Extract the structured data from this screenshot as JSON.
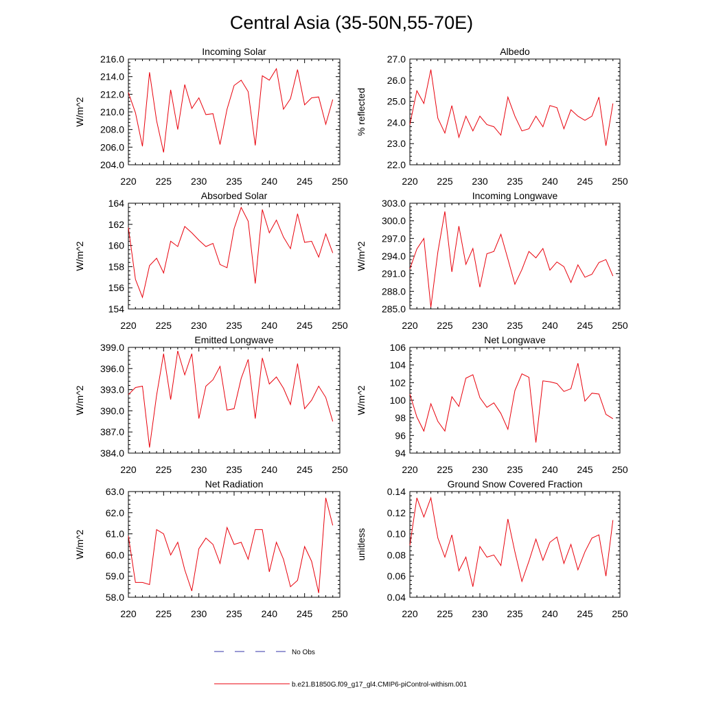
{
  "title": "Central Asia (35-50N,55-70E)",
  "legend": [
    {
      "label": "No Obs",
      "color": "#3333aa",
      "dash": true
    },
    {
      "label": "b.e21.B1850G.f09_g17_gl4.CMIP6-piControl-withism.001",
      "color": "#e8000b",
      "dash": false
    }
  ],
  "chart_data": [
    {
      "type": "line",
      "title": "Incoming Solar",
      "ylabel": "W/m^2",
      "xlim": [
        220,
        250
      ],
      "ylim": [
        204,
        216
      ],
      "xticks": [
        "220",
        "225",
        "230",
        "235",
        "240",
        "245",
        "250"
      ],
      "yticks": [
        "204.0",
        "206.0",
        "208.0",
        "210.0",
        "212.0",
        "214.0",
        "216.0"
      ],
      "series": [
        {
          "color": "#e8000b",
          "x": [
            220,
            221,
            222,
            223,
            224,
            225,
            226,
            227,
            228,
            229,
            230,
            231,
            232,
            233,
            234,
            235,
            236,
            237,
            238,
            239,
            240,
            241,
            242,
            243,
            244,
            245,
            246,
            247,
            248,
            249
          ],
          "y": [
            212.2,
            209.9,
            206.1,
            214.5,
            209.0,
            205.4,
            212.5,
            208.0,
            213.1,
            210.4,
            211.6,
            209.7,
            209.8,
            206.3,
            210.3,
            213.0,
            213.6,
            212.3,
            206.2,
            214.1,
            213.6,
            214.9,
            210.3,
            211.5,
            214.8,
            210.8,
            211.6,
            211.7,
            208.6,
            211.4
          ]
        }
      ]
    },
    {
      "type": "line",
      "title": "Albedo",
      "ylabel": "% reflected",
      "xlim": [
        220,
        250
      ],
      "ylim": [
        22,
        27
      ],
      "xticks": [
        "220",
        "225",
        "230",
        "235",
        "240",
        "245",
        "250"
      ],
      "yticks": [
        "22.0",
        "23.0",
        "24.0",
        "25.0",
        "26.0",
        "27.0"
      ],
      "series": [
        {
          "color": "#e8000b",
          "x": [
            220,
            221,
            222,
            223,
            224,
            225,
            226,
            227,
            228,
            229,
            230,
            231,
            232,
            233,
            234,
            235,
            236,
            237,
            238,
            239,
            240,
            241,
            242,
            243,
            244,
            245,
            246,
            247,
            248,
            249
          ],
          "y": [
            23.9,
            25.5,
            24.9,
            26.5,
            24.2,
            23.5,
            24.8,
            23.3,
            24.3,
            23.6,
            24.3,
            23.9,
            23.8,
            23.4,
            25.2,
            24.3,
            23.6,
            23.7,
            24.3,
            23.8,
            24.8,
            24.7,
            23.7,
            24.6,
            24.3,
            24.1,
            24.3,
            25.2,
            22.9,
            24.9
          ]
        }
      ]
    },
    {
      "type": "line",
      "title": "Absorbed Solar",
      "ylabel": "W/m^2",
      "xlim": [
        220,
        250
      ],
      "ylim": [
        154,
        164
      ],
      "xticks": [
        "220",
        "225",
        "230",
        "235",
        "240",
        "245",
        "250"
      ],
      "yticks": [
        "154",
        "156",
        "158",
        "160",
        "162",
        "164"
      ],
      "series": [
        {
          "color": "#e8000b",
          "x": [
            220,
            221,
            222,
            223,
            224,
            225,
            226,
            227,
            228,
            229,
            230,
            231,
            232,
            233,
            234,
            235,
            236,
            237,
            238,
            239,
            240,
            241,
            242,
            243,
            244,
            245,
            246,
            247,
            248,
            249
          ],
          "y": [
            161.7,
            156.8,
            155.1,
            158.1,
            158.8,
            157.4,
            160.4,
            159.9,
            161.8,
            161.2,
            160.5,
            159.9,
            160.2,
            158.2,
            157.9,
            161.6,
            163.6,
            162.3,
            156.4,
            163.4,
            161.2,
            162.4,
            160.8,
            159.7,
            163.0,
            160.3,
            160.4,
            158.9,
            161.1,
            159.3
          ]
        }
      ]
    },
    {
      "type": "line",
      "title": "Incoming Longwave",
      "ylabel": "W/m^2",
      "xlim": [
        220,
        250
      ],
      "ylim": [
        285,
        303
      ],
      "xticks": [
        "220",
        "225",
        "230",
        "235",
        "240",
        "245",
        "250"
      ],
      "yticks": [
        "285.0",
        "288.0",
        "291.0",
        "294.0",
        "297.0",
        "300.0",
        "303.0"
      ],
      "series": [
        {
          "color": "#e8000b",
          "x": [
            220,
            221,
            222,
            223,
            224,
            225,
            226,
            227,
            228,
            229,
            230,
            231,
            232,
            233,
            234,
            235,
            236,
            237,
            238,
            239,
            240,
            241,
            242,
            243,
            244,
            245,
            246,
            247,
            248,
            249
          ],
          "y": [
            291.8,
            295.2,
            297.0,
            285.3,
            294.7,
            301.6,
            291.3,
            299.1,
            292.6,
            295.3,
            288.7,
            294.4,
            294.8,
            297.7,
            293.5,
            289.2,
            291.7,
            294.8,
            293.7,
            295.3,
            291.6,
            293.0,
            292.2,
            289.5,
            292.5,
            290.4,
            290.9,
            292.9,
            293.4,
            290.6
          ]
        }
      ]
    },
    {
      "type": "line",
      "title": "Emitted Longwave",
      "ylabel": "W/m^2",
      "xlim": [
        220,
        250
      ],
      "ylim": [
        384,
        399
      ],
      "xticks": [
        "220",
        "225",
        "230",
        "235",
        "240",
        "245",
        "250"
      ],
      "yticks": [
        "384.0",
        "387.0",
        "390.0",
        "393.0",
        "396.0",
        "399.0"
      ],
      "series": [
        {
          "color": "#e8000b",
          "x": [
            220,
            221,
            222,
            223,
            224,
            225,
            226,
            227,
            228,
            229,
            230,
            231,
            232,
            233,
            234,
            235,
            236,
            237,
            238,
            239,
            240,
            241,
            242,
            243,
            244,
            245,
            246,
            247,
            248,
            249
          ],
          "y": [
            392.3,
            393.3,
            393.5,
            384.8,
            392.2,
            398.1,
            391.6,
            398.5,
            395.1,
            398.1,
            388.9,
            393.5,
            394.4,
            396.3,
            390.1,
            390.3,
            394.6,
            397.3,
            388.9,
            397.5,
            393.8,
            394.8,
            393.2,
            390.9,
            396.7,
            390.3,
            391.5,
            393.5,
            391.9,
            388.5
          ]
        }
      ]
    },
    {
      "type": "line",
      "title": "Net Longwave",
      "ylabel": "W/m^2",
      "xlim": [
        220,
        250
      ],
      "ylim": [
        94,
        106
      ],
      "xticks": [
        "220",
        "225",
        "230",
        "235",
        "240",
        "245",
        "250"
      ],
      "yticks": [
        "94",
        "96",
        "98",
        "100",
        "102",
        "104",
        "106"
      ],
      "series": [
        {
          "color": "#e8000b",
          "x": [
            220,
            221,
            222,
            223,
            224,
            225,
            226,
            227,
            228,
            229,
            230,
            231,
            232,
            233,
            234,
            235,
            236,
            237,
            238,
            239,
            240,
            241,
            242,
            243,
            244,
            245,
            246,
            247,
            248,
            249
          ],
          "y": [
            100.7,
            98.1,
            96.5,
            99.6,
            97.6,
            96.5,
            100.4,
            99.3,
            102.5,
            102.9,
            100.3,
            99.2,
            99.7,
            98.5,
            96.7,
            101.1,
            103.0,
            102.6,
            95.2,
            102.2,
            102.1,
            101.9,
            101.0,
            101.3,
            104.2,
            99.9,
            100.8,
            100.7,
            98.4,
            97.9
          ]
        }
      ]
    },
    {
      "type": "line",
      "title": "Net Radiation",
      "ylabel": "W/m^2",
      "xlim": [
        220,
        250
      ],
      "ylim": [
        58,
        63
      ],
      "xticks": [
        "220",
        "225",
        "230",
        "235",
        "240",
        "245",
        "250"
      ],
      "yticks": [
        "58.0",
        "59.0",
        "60.0",
        "61.0",
        "62.0",
        "63.0"
      ],
      "series": [
        {
          "color": "#e8000b",
          "x": [
            220,
            221,
            222,
            223,
            224,
            225,
            226,
            227,
            228,
            229,
            230,
            231,
            232,
            233,
            234,
            235,
            236,
            237,
            238,
            239,
            240,
            241,
            242,
            243,
            244,
            245,
            246,
            247,
            248,
            249
          ],
          "y": [
            60.9,
            58.7,
            58.7,
            58.6,
            61.2,
            61.0,
            60.0,
            60.6,
            59.3,
            58.3,
            60.3,
            60.8,
            60.5,
            59.6,
            61.3,
            60.5,
            60.6,
            59.8,
            61.2,
            61.2,
            59.2,
            60.6,
            59.8,
            58.5,
            58.8,
            60.4,
            59.7,
            58.2,
            62.7,
            61.4
          ]
        }
      ]
    },
    {
      "type": "line",
      "title": "Ground Snow Covered Fraction",
      "ylabel": "unitless",
      "xlim": [
        220,
        250
      ],
      "ylim": [
        0.04,
        0.14
      ],
      "xticks": [
        "220",
        "225",
        "230",
        "235",
        "240",
        "245",
        "250"
      ],
      "yticks": [
        "0.04",
        "0.06",
        "0.08",
        "0.10",
        "0.12",
        "0.14"
      ],
      "series": [
        {
          "color": "#e8000b",
          "x": [
            220,
            221,
            222,
            223,
            224,
            225,
            226,
            227,
            228,
            229,
            230,
            231,
            232,
            233,
            234,
            235,
            236,
            237,
            238,
            239,
            240,
            241,
            242,
            243,
            244,
            245,
            246,
            247,
            248,
            249
          ],
          "y": [
            0.089,
            0.134,
            0.116,
            0.134,
            0.096,
            0.078,
            0.099,
            0.065,
            0.078,
            0.05,
            0.088,
            0.078,
            0.08,
            0.07,
            0.114,
            0.083,
            0.055,
            0.074,
            0.095,
            0.075,
            0.092,
            0.097,
            0.072,
            0.09,
            0.066,
            0.083,
            0.096,
            0.099,
            0.06,
            0.113
          ]
        }
      ]
    }
  ]
}
